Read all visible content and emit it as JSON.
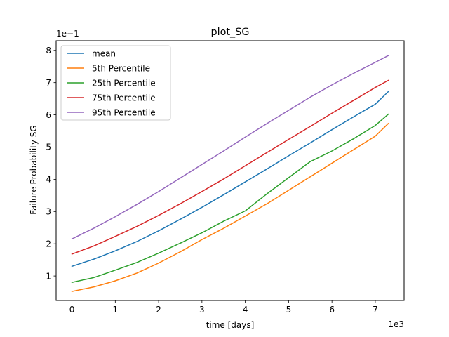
{
  "chart_data": {
    "type": "line",
    "title": "plot_SG",
    "xlabel": "time [days]",
    "ylabel": "Failure Probability SG",
    "x_offset_text": "1e3",
    "y_offset_text": "1e−1",
    "xlim": [
      -0.365,
      7.665
    ],
    "ylim": [
      0.24,
      8.3
    ],
    "x_ticks": [
      0,
      1,
      2,
      3,
      4,
      5,
      6,
      7
    ],
    "y_ticks": [
      1,
      2,
      3,
      4,
      5,
      6,
      7,
      8
    ],
    "x_tick_labels": [
      "0",
      "1",
      "2",
      "3",
      "4",
      "5",
      "6",
      "7"
    ],
    "y_tick_labels": [
      "1",
      "2",
      "3",
      "4",
      "5",
      "6",
      "7",
      "8"
    ],
    "grid": false,
    "legend_position": "top-left",
    "x": [
      0,
      0.5,
      1,
      1.5,
      2,
      2.5,
      3,
      3.5,
      4,
      4.5,
      5,
      5.5,
      6,
      6.5,
      7,
      7.3
    ],
    "series": [
      {
        "name": "mean",
        "color": "#1f77b4",
        "values": [
          1.3,
          1.52,
          1.78,
          2.07,
          2.4,
          2.76,
          3.13,
          3.52,
          3.92,
          4.32,
          4.73,
          5.13,
          5.54,
          5.94,
          6.33,
          6.72
        ]
      },
      {
        "name": "5th Percentile",
        "color": "#ff7f0e",
        "values": [
          0.52,
          0.66,
          0.85,
          1.09,
          1.4,
          1.75,
          2.13,
          2.48,
          2.86,
          3.24,
          3.66,
          4.08,
          4.5,
          4.92,
          5.34,
          5.73
        ]
      },
      {
        "name": "25th Percentile",
        "color": "#2ca02c",
        "values": [
          0.8,
          0.95,
          1.18,
          1.42,
          1.71,
          2.02,
          2.34,
          2.7,
          3.02,
          3.55,
          4.05,
          4.55,
          4.88,
          5.26,
          5.67,
          6.02
        ]
      },
      {
        "name": "75th Percentile",
        "color": "#d62728",
        "values": [
          1.68,
          1.93,
          2.23,
          2.54,
          2.88,
          3.24,
          3.62,
          4.01,
          4.42,
          4.83,
          5.24,
          5.64,
          6.05,
          6.45,
          6.85,
          7.07
        ]
      },
      {
        "name": "95th Percentile",
        "color": "#9467bd",
        "values": [
          2.15,
          2.48,
          2.84,
          3.22,
          3.62,
          4.04,
          4.46,
          4.88,
          5.31,
          5.73,
          6.14,
          6.55,
          6.93,
          7.29,
          7.63,
          7.84
        ]
      }
    ]
  }
}
